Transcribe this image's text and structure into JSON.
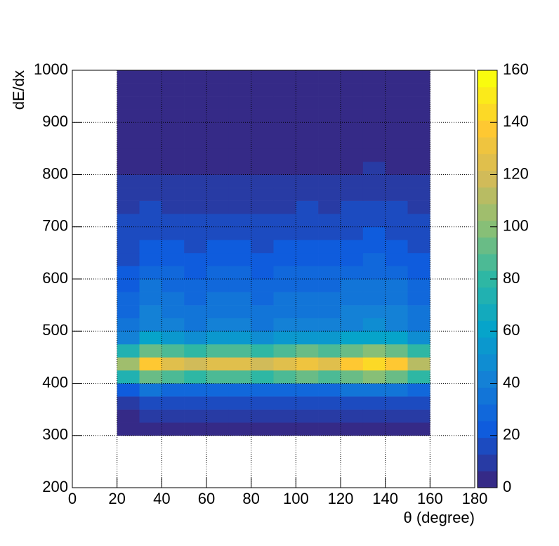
{
  "chart_data": {
    "type": "heatmap",
    "x_label": "θ (degree)",
    "y_label": "dE/dx",
    "xlim": [
      0,
      180
    ],
    "xticks": [
      0,
      20,
      40,
      60,
      80,
      100,
      120,
      140,
      160,
      180
    ],
    "ylim": [
      200,
      1000
    ],
    "yticks": [
      200,
      300,
      400,
      500,
      600,
      700,
      800,
      900,
      1000
    ],
    "zlim": [
      0,
      160
    ],
    "zticks": [
      0,
      20,
      40,
      60,
      80,
      100,
      120,
      140,
      160
    ],
    "grid": true,
    "palette": [
      "#352a87",
      "#0f5cdd",
      "#1481d6",
      "#06a4ca",
      "#2eb7a4",
      "#87bf77",
      "#d1bb59",
      "#fec832",
      "#f9fb0e"
    ],
    "xbins": [
      20,
      30,
      40,
      50,
      60,
      70,
      80,
      90,
      100,
      110,
      120,
      130,
      140,
      150,
      160
    ],
    "ybins": [
      300,
      325,
      350,
      375,
      400,
      425,
      450,
      475,
      500,
      525,
      550,
      575,
      600,
      625,
      650,
      675,
      700,
      725,
      750,
      775,
      800,
      825,
      850,
      875,
      900,
      925,
      950,
      975,
      1000
    ],
    "z": [
      [
        2,
        3,
        3,
        3,
        3,
        3,
        3,
        3,
        3,
        3,
        3,
        3,
        3,
        3
      ],
      [
        6,
        8,
        8,
        7,
        8,
        8,
        7,
        8,
        8,
        8,
        8,
        9,
        8,
        7
      ],
      [
        12,
        16,
        14,
        14,
        14,
        14,
        14,
        14,
        15,
        14,
        16,
        17,
        16,
        13
      ],
      [
        24,
        32,
        29,
        27,
        29,
        29,
        27,
        29,
        30,
        29,
        32,
        33,
        32,
        26
      ],
      [
        72,
        95,
        86,
        81,
        86,
        86,
        81,
        86,
        90,
        86,
        95,
        99,
        95,
        77
      ],
      [
        104,
        137,
        124,
        117,
        124,
        124,
        117,
        124,
        130,
        124,
        137,
        143,
        137,
        111
      ],
      [
        72,
        95,
        86,
        81,
        86,
        86,
        81,
        86,
        90,
        86,
        95,
        99,
        95,
        77
      ],
      [
        44,
        58,
        52,
        50,
        52,
        52,
        50,
        52,
        55,
        52,
        58,
        61,
        58,
        47
      ],
      [
        34,
        44,
        40,
        38,
        40,
        40,
        38,
        40,
        42,
        40,
        44,
        46,
        44,
        36
      ],
      [
        30,
        40,
        36,
        34,
        36,
        36,
        34,
        36,
        38,
        36,
        40,
        42,
        40,
        32
      ],
      [
        27,
        36,
        32,
        31,
        32,
        32,
        31,
        32,
        34,
        32,
        36,
        37,
        36,
        29
      ],
      [
        24,
        32,
        29,
        27,
        29,
        29,
        27,
        29,
        30,
        29,
        32,
        33,
        32,
        26
      ],
      [
        22,
        28,
        26,
        24,
        26,
        26,
        24,
        26,
        27,
        26,
        28,
        30,
        28,
        23
      ],
      [
        19,
        25,
        23,
        22,
        23,
        23,
        22,
        23,
        24,
        23,
        25,
        26,
        25,
        20
      ],
      [
        17,
        22,
        20,
        19,
        20,
        20,
        19,
        20,
        21,
        20,
        22,
        23,
        22,
        18
      ],
      [
        14,
        19,
        17,
        16,
        17,
        17,
        16,
        17,
        18,
        17,
        19,
        20,
        19,
        15
      ],
      [
        13,
        17,
        15,
        14,
        15,
        15,
        14,
        15,
        16,
        15,
        17,
        18,
        17,
        14
      ],
      [
        10,
        14,
        12,
        12,
        12,
        12,
        12,
        12,
        13,
        12,
        14,
        14,
        14,
        11
      ],
      [
        9,
        12,
        10,
        10,
        10,
        10,
        10,
        10,
        11,
        10,
        12,
        12,
        12,
        9
      ],
      [
        7,
        9,
        9,
        8,
        9,
        9,
        8,
        9,
        9,
        9,
        9,
        10,
        9,
        8
      ],
      [
        5,
        6,
        6,
        5,
        6,
        6,
        5,
        6,
        6,
        6,
        6,
        7,
        6,
        5
      ],
      [
        4,
        5,
        5,
        5,
        5,
        5,
        5,
        5,
        5,
        5,
        5,
        6,
        5,
        4
      ],
      [
        3,
        4,
        4,
        4,
        4,
        4,
        4,
        4,
        4,
        4,
        4,
        4,
        4,
        3
      ],
      [
        2,
        3,
        3,
        3,
        3,
        3,
        3,
        3,
        3,
        3,
        3,
        3,
        3,
        3
      ],
      [
        2,
        3,
        3,
        3,
        3,
        3,
        3,
        3,
        3,
        3,
        3,
        3,
        3,
        3
      ],
      [
        2,
        2,
        2,
        2,
        2,
        2,
        2,
        2,
        2,
        2,
        2,
        2,
        2,
        2
      ],
      [
        2,
        2,
        2,
        2,
        2,
        2,
        2,
        2,
        2,
        2,
        2,
        2,
        2,
        2
      ],
      [
        2,
        2,
        2,
        2,
        2,
        2,
        2,
        2,
        2,
        2,
        2,
        2,
        2,
        2
      ]
    ]
  }
}
